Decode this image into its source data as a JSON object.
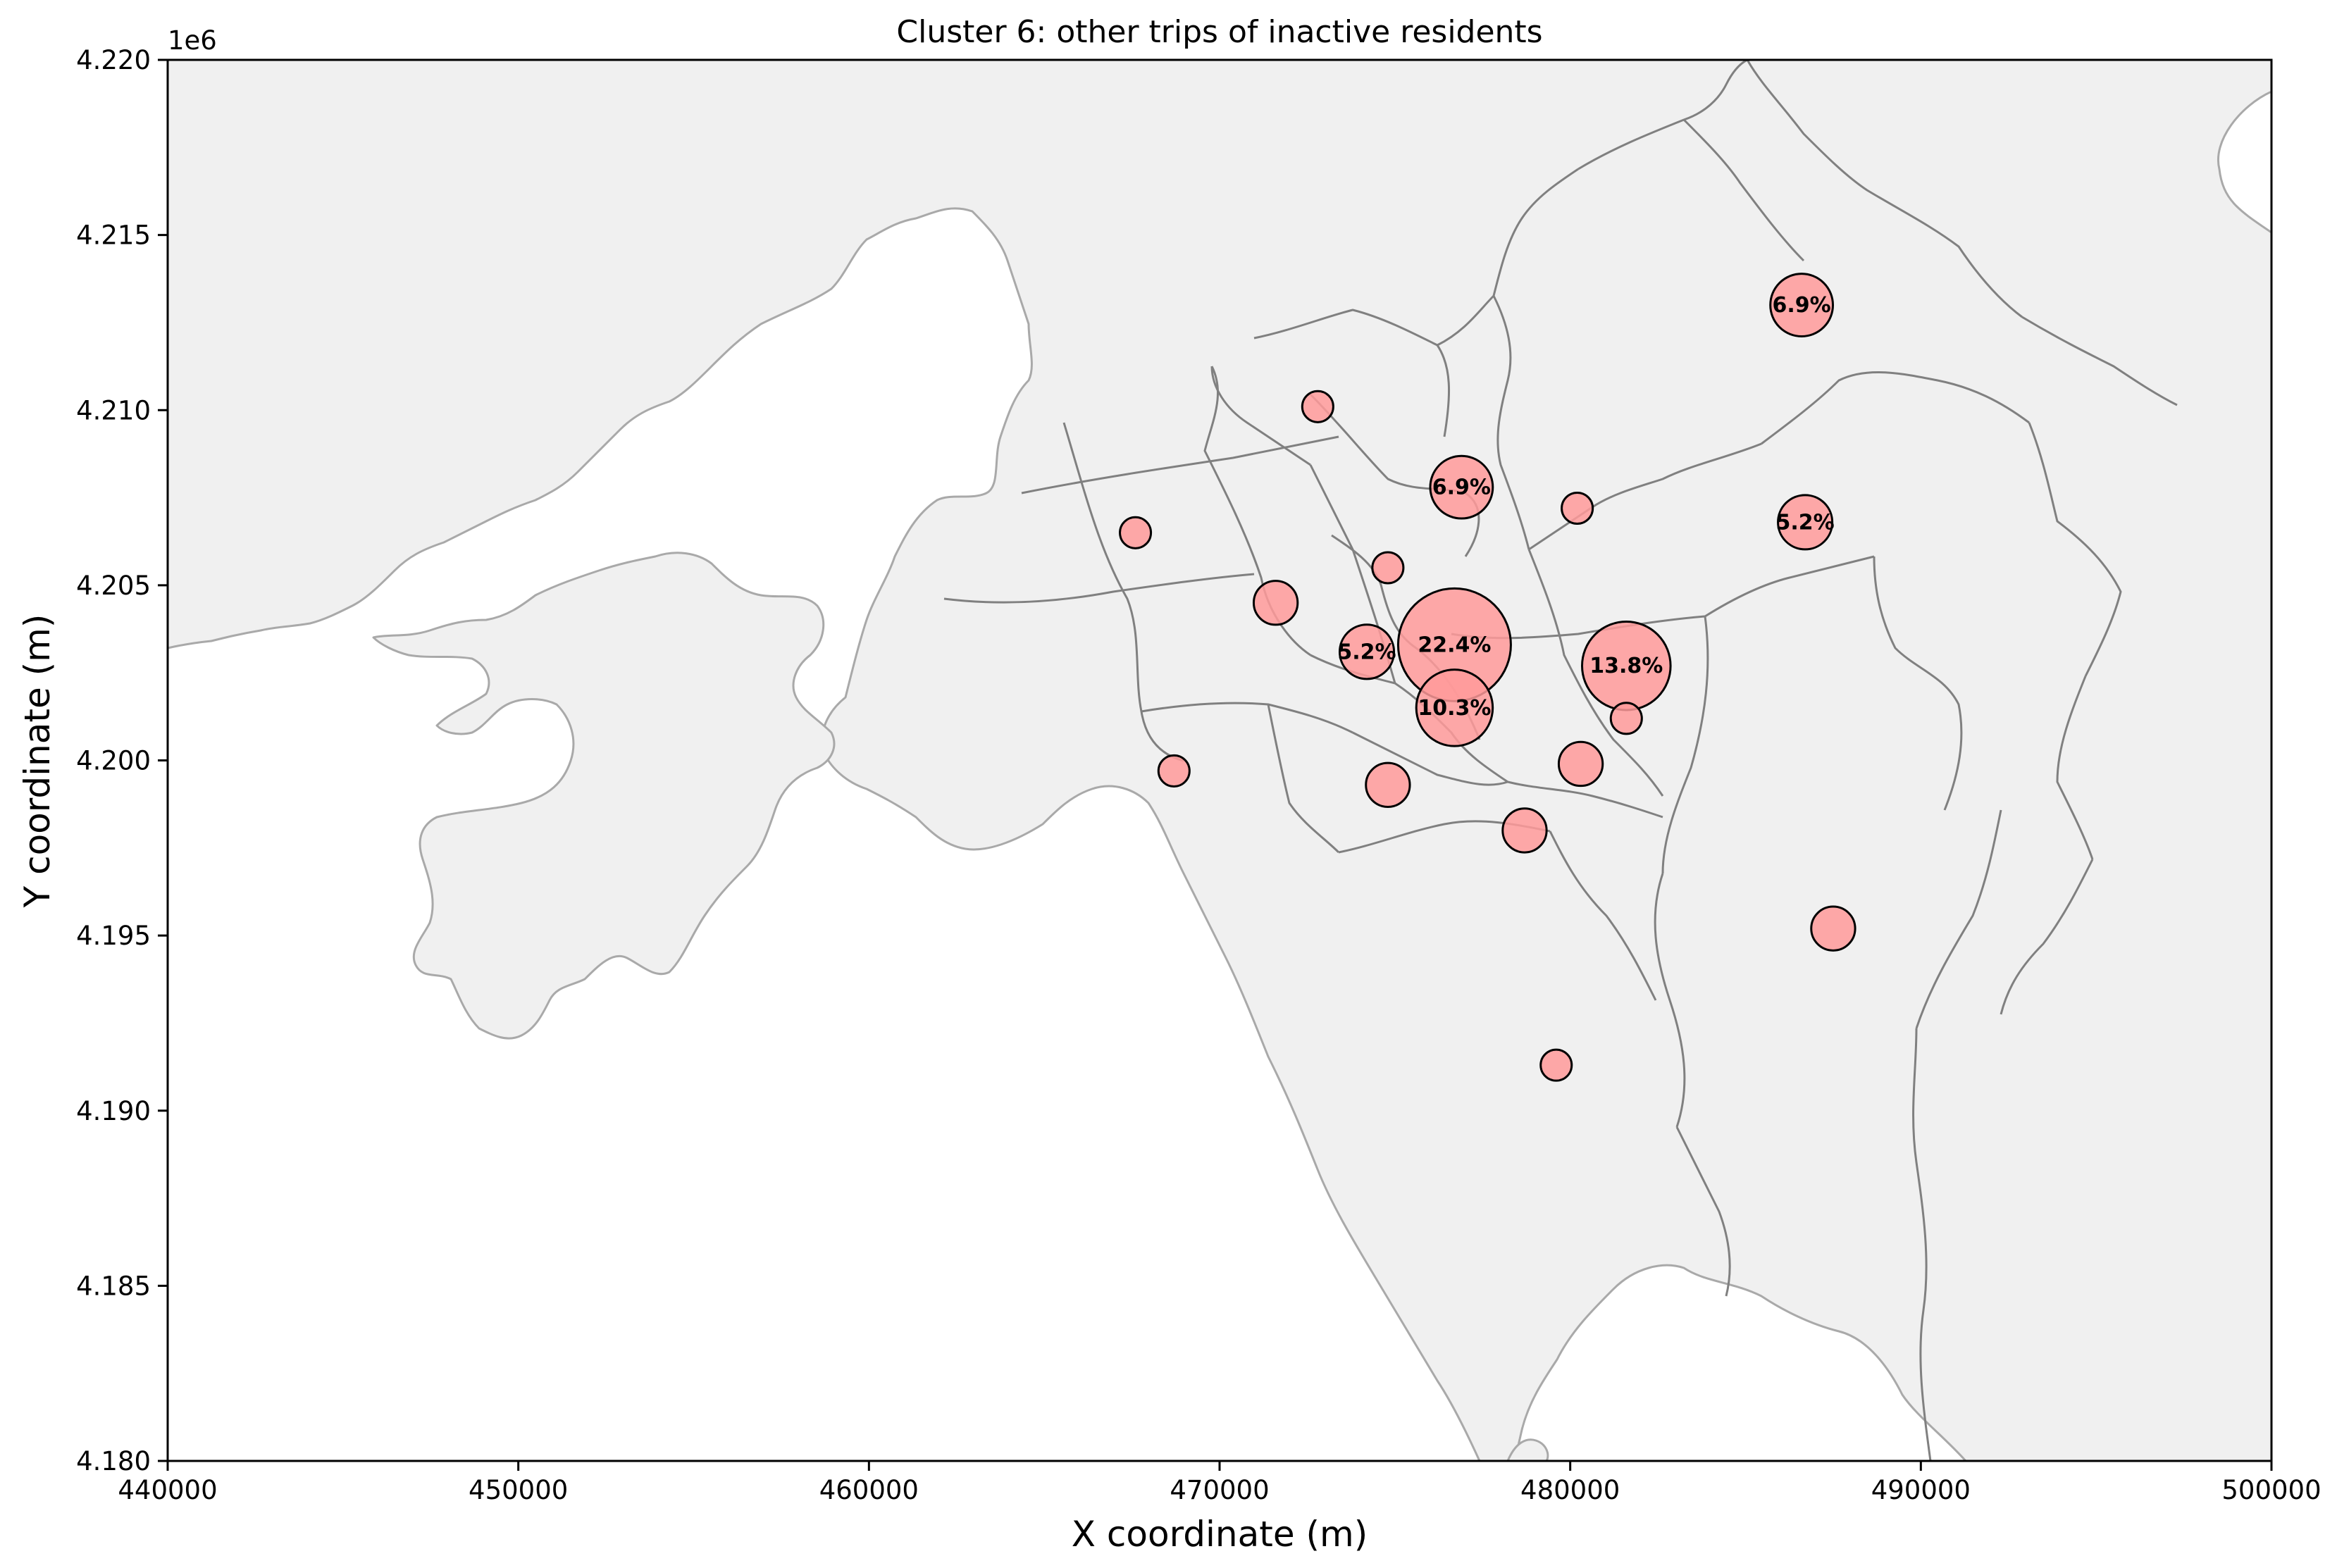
{
  "chart_data": {
    "type": "scatter",
    "title": "Cluster 6: other trips of inactive residents",
    "xlabel": "X coordinate (m)",
    "ylabel": "Y coordinate (m)",
    "xlim": [
      440000,
      500000
    ],
    "ylim": [
      4180000,
      4220000
    ],
    "x_ticks": [
      440000,
      450000,
      460000,
      470000,
      480000,
      490000,
      500000
    ],
    "x_tick_labels": [
      "440000",
      "450000",
      "460000",
      "470000",
      "480000",
      "490000",
      "500000"
    ],
    "y_ticks": [
      4180000,
      4185000,
      4190000,
      4195000,
      4200000,
      4205000,
      4210000,
      4215000,
      4220000
    ],
    "y_tick_labels": [
      "4.180",
      "4.185",
      "4.190",
      "4.195",
      "4.200",
      "4.205",
      "4.210",
      "4.215",
      "4.220"
    ],
    "y_offset_label": "1e6",
    "grid": false,
    "marker_color": "#ff9a9a",
    "marker_edge_color": "#000000",
    "map_fill_color": "#f0f0f0",
    "boundary_color": "#808080",
    "coast_color": "#a9a9a9",
    "points": [
      {
        "x": 476700,
        "y": 4203300,
        "share": 22.4,
        "label": "22.4%"
      },
      {
        "x": 481600,
        "y": 4202700,
        "share": 13.8,
        "label": "13.8%"
      },
      {
        "x": 476700,
        "y": 4201500,
        "share": 10.3,
        "label": "10.3%"
      },
      {
        "x": 476900,
        "y": 4207800,
        "share": 6.9,
        "label": "6.9%"
      },
      {
        "x": 486600,
        "y": 4213000,
        "share": 6.9,
        "label": "6.9%"
      },
      {
        "x": 474200,
        "y": 4203100,
        "share": 5.2,
        "label": "5.2%"
      },
      {
        "x": 486700,
        "y": 4206800,
        "share": 5.2,
        "label": "5.2%"
      },
      {
        "x": 471600,
        "y": 4204500,
        "share": 3.4,
        "label": ""
      },
      {
        "x": 474800,
        "y": 4199300,
        "share": 3.4,
        "label": ""
      },
      {
        "x": 480300,
        "y": 4199900,
        "share": 3.4,
        "label": ""
      },
      {
        "x": 478700,
        "y": 4198000,
        "share": 3.4,
        "label": ""
      },
      {
        "x": 487500,
        "y": 4195200,
        "share": 3.4,
        "label": ""
      },
      {
        "x": 472800,
        "y": 4210100,
        "share": 1.7,
        "label": ""
      },
      {
        "x": 467600,
        "y": 4206500,
        "share": 1.7,
        "label": ""
      },
      {
        "x": 474800,
        "y": 4205500,
        "share": 1.7,
        "label": ""
      },
      {
        "x": 480200,
        "y": 4207200,
        "share": 1.7,
        "label": ""
      },
      {
        "x": 481600,
        "y": 4201200,
        "share": 1.7,
        "label": ""
      },
      {
        "x": 468700,
        "y": 4199700,
        "share": 1.7,
        "label": ""
      },
      {
        "x": 479600,
        "y": 4191300,
        "share": 1.7,
        "label": ""
      }
    ]
  }
}
